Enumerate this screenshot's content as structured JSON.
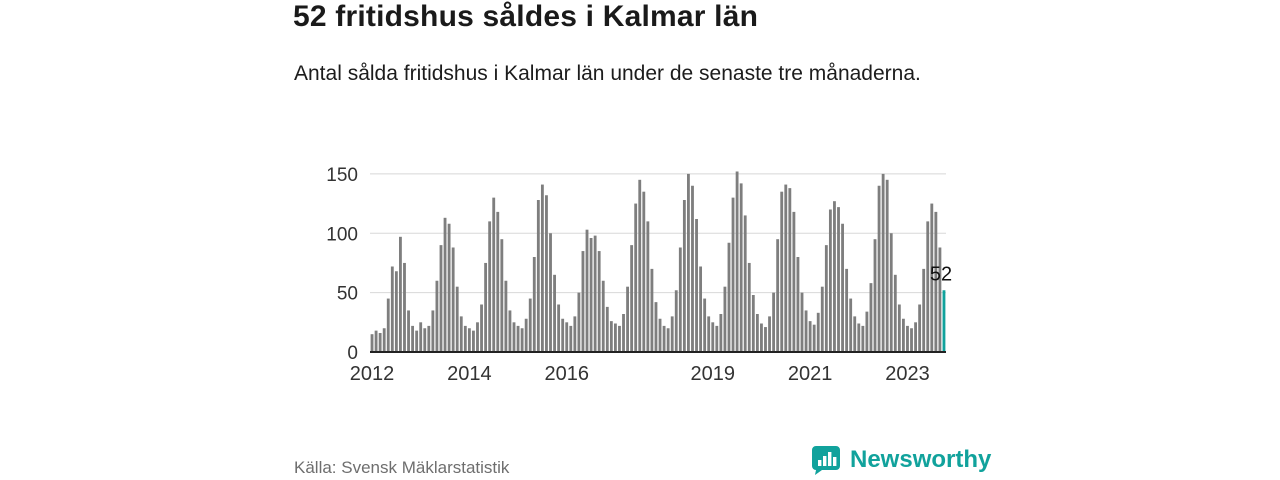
{
  "header": {
    "title": "52 fritidshus såldes i Kalmar län",
    "subtitle": "Antal sålda fritidshus i Kalmar län under de senaste tre månaderna."
  },
  "footer": {
    "source": "Källa: Svensk Mäklarstatistik",
    "brand": "Newsworthy"
  },
  "colors": {
    "bar": "#7e7e7e",
    "accent": "#11a29c",
    "grid": "#d8d8d8",
    "axis": "#222222",
    "tick_text": "#333333",
    "annotation_text": "#111111"
  },
  "chart_data": {
    "type": "bar",
    "title": "52 fritidshus såldes i Kalmar län",
    "xlabel": "",
    "ylabel": "",
    "x_unit": "month",
    "x_start": "2012-01",
    "ylim": [
      0,
      160
    ],
    "yticks": [
      0,
      50,
      100,
      150
    ],
    "xticks": [
      {
        "label": "2012",
        "index": 0
      },
      {
        "label": "2014",
        "index": 24
      },
      {
        "label": "2016",
        "index": 48
      },
      {
        "label": "2019",
        "index": 84
      },
      {
        "label": "2021",
        "index": 108
      },
      {
        "label": "2023",
        "index": 132
      }
    ],
    "values": [
      15,
      18,
      16,
      20,
      45,
      72,
      68,
      97,
      75,
      35,
      22,
      18,
      25,
      20,
      22,
      35,
      60,
      90,
      113,
      108,
      88,
      55,
      30,
      22,
      20,
      18,
      25,
      40,
      75,
      110,
      130,
      118,
      95,
      60,
      35,
      25,
      22,
      20,
      28,
      45,
      80,
      128,
      141,
      132,
      100,
      65,
      40,
      28,
      25,
      22,
      30,
      50,
      85,
      103,
      96,
      98,
      85,
      60,
      38,
      26,
      24,
      22,
      32,
      55,
      90,
      125,
      145,
      135,
      110,
      70,
      42,
      28,
      22,
      20,
      30,
      52,
      88,
      128,
      150,
      140,
      112,
      72,
      45,
      30,
      25,
      22,
      32,
      55,
      92,
      130,
      152,
      142,
      115,
      75,
      48,
      32,
      24,
      21,
      30,
      50,
      95,
      135,
      141,
      138,
      118,
      80,
      50,
      35,
      26,
      23,
      33,
      55,
      90,
      120,
      127,
      122,
      108,
      70,
      45,
      30,
      24,
      22,
      34,
      58,
      95,
      140,
      150,
      145,
      100,
      65,
      40,
      28,
      22,
      20,
      25,
      40,
      70,
      110,
      125,
      118,
      88,
      52
    ],
    "highlight_index": 141,
    "highlight_value": 52,
    "annotation": "52",
    "legend": "none",
    "grid": "horizontal"
  }
}
